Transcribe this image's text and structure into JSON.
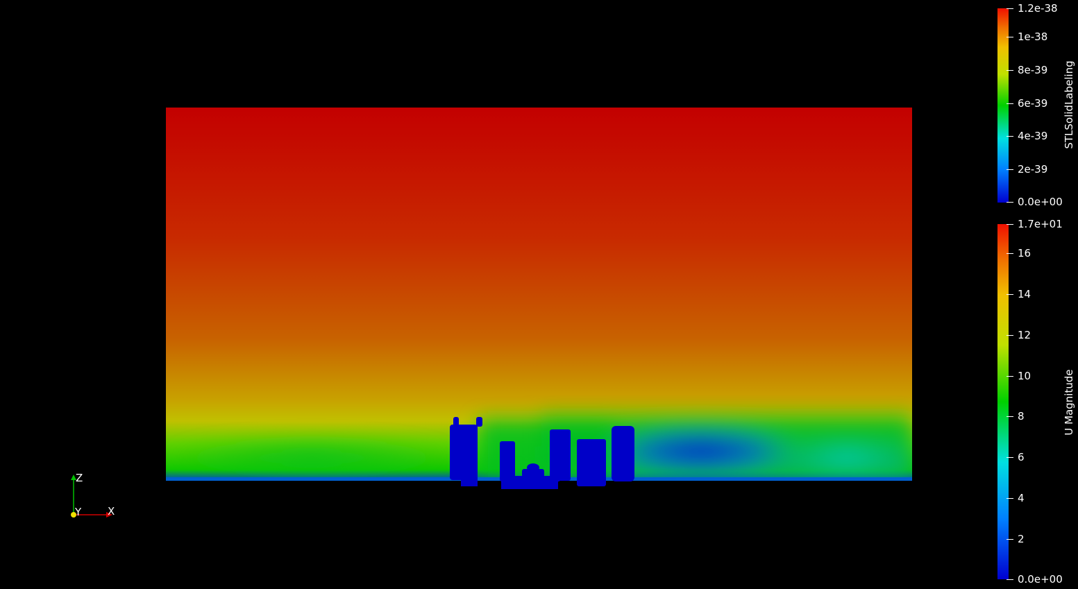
{
  "colors": {
    "background": "#000000",
    "text": "#ffffff",
    "rainbow": [
      "#0000cd",
      "#0070f0",
      "#00e0e0",
      "#00d000",
      "#a0e000",
      "#f0e000",
      "#f08000",
      "#e00000"
    ],
    "obstacle": "#0000c8",
    "axis_x": "#d00000",
    "axis_y": "#f0e000",
    "axis_z": "#00c000"
  },
  "colorbars": [
    {
      "title": "STLSolidLabeling",
      "ticks": [
        "1.2e-38",
        "1e-38",
        "8e-39",
        "6e-39",
        "4e-39",
        "2e-39",
        "0.0e+00"
      ]
    },
    {
      "title": "U Magnitude",
      "ticks": [
        "1.7e+01",
        "16",
        "14",
        "12",
        "10",
        "8",
        "6",
        "4",
        "2",
        "0.0e+00"
      ]
    }
  ],
  "orientation_axes": {
    "z_label": "Z",
    "y_label": "Y",
    "x_label": "X"
  }
}
